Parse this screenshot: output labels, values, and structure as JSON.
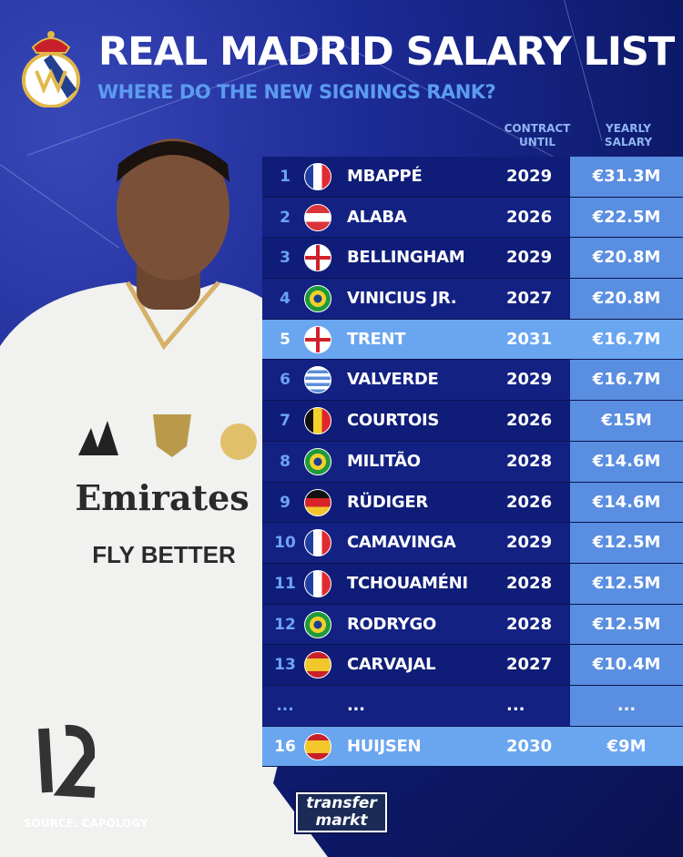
{
  "header": {
    "title": "REAL MADRID SALARY LIST",
    "subtitle": "WHERE DO THE NEW SIGNINGS RANK?",
    "crest": "real-madrid-crest"
  },
  "columns": {
    "contract": [
      "CONTRACT",
      "UNTIL"
    ],
    "salary": [
      "YEARLY",
      "SALARY"
    ]
  },
  "rows": [
    {
      "rank": "1",
      "flag": "france",
      "name": "MBAPPÉ",
      "until": "2029",
      "salary": "€31.3M",
      "highlight": false
    },
    {
      "rank": "2",
      "flag": "austria",
      "name": "ALABA",
      "until": "2026",
      "salary": "€22.5M",
      "highlight": false
    },
    {
      "rank": "3",
      "flag": "england",
      "name": "BELLINGHAM",
      "until": "2029",
      "salary": "€20.8M",
      "highlight": false
    },
    {
      "rank": "4",
      "flag": "brazil",
      "name": "VINICIUS JR.",
      "until": "2027",
      "salary": "€20.8M",
      "highlight": false
    },
    {
      "rank": "5",
      "flag": "england",
      "name": "TRENT",
      "until": "2031",
      "salary": "€16.7M",
      "highlight": true
    },
    {
      "rank": "6",
      "flag": "uruguay",
      "name": "VALVERDE",
      "until": "2029",
      "salary": "€16.7M",
      "highlight": false
    },
    {
      "rank": "7",
      "flag": "belgium",
      "name": "COURTOIS",
      "until": "2026",
      "salary": "€15M",
      "highlight": false
    },
    {
      "rank": "8",
      "flag": "brazil",
      "name": "MILITÃO",
      "until": "2028",
      "salary": "€14.6M",
      "highlight": false
    },
    {
      "rank": "9",
      "flag": "germany",
      "name": "RÜDIGER",
      "until": "2026",
      "salary": "€14.6M",
      "highlight": false
    },
    {
      "rank": "10",
      "flag": "france",
      "name": "CAMAVINGA",
      "until": "2029",
      "salary": "€12.5M",
      "highlight": false
    },
    {
      "rank": "11",
      "flag": "france",
      "name": "TCHOUAMÉNI",
      "until": "2028",
      "salary": "€12.5M",
      "highlight": false
    },
    {
      "rank": "12",
      "flag": "brazil",
      "name": "RODRYGO",
      "until": "2028",
      "salary": "€12.5M",
      "highlight": false
    },
    {
      "rank": "13",
      "flag": "spain",
      "name": "CARVAJAL",
      "until": "2027",
      "salary": "€10.4M",
      "highlight": false
    },
    {
      "rank": "...",
      "flag": "",
      "name": "...",
      "until": "...",
      "salary": "...",
      "highlight": false
    },
    {
      "rank": "16",
      "flag": "spain",
      "name": "HUIJSEN",
      "until": "2030",
      "salary": "€9M",
      "highlight": true
    }
  ],
  "footer": {
    "source": "SOURCE: CAPOLOGY",
    "logo": [
      "transfer",
      "markt"
    ]
  },
  "colors": {
    "background": "#0d1a6a",
    "row": "#0f1d78",
    "salary_cell": "#5a8ee0",
    "highlight": "#6aa5f0",
    "subtitle": "#5b9bf0"
  }
}
